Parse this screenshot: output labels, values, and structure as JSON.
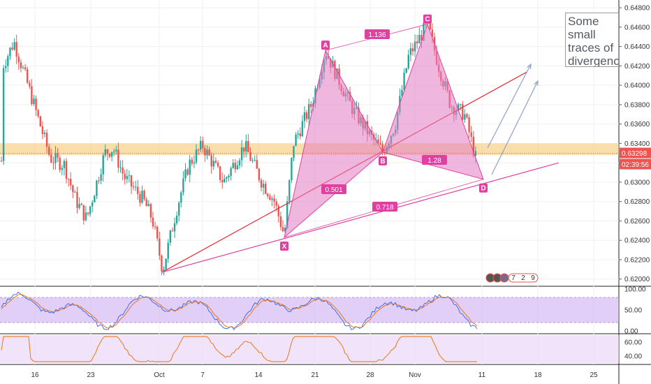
{
  "note": {
    "lines": [
      "Some",
      "small",
      "traces of",
      "divergenc"
    ]
  },
  "price_badges": {
    "current_price": "0.63298",
    "countdown": "02:39:56"
  },
  "chart_data": {
    "type": "candlestick",
    "pair_axis": {
      "ticks": [
        "0.64800",
        "0.64600",
        "0.64400",
        "0.64200",
        "0.64000",
        "0.63800",
        "0.63600",
        "0.63400",
        "0.63200",
        "0.63000",
        "0.62800",
        "0.62600",
        "0.62400",
        "0.62200",
        "0.62000"
      ],
      "ylim": [
        0.6194,
        0.6488
      ]
    },
    "time_axis": {
      "ticks": [
        "16",
        "23",
        "Oct",
        "7",
        "14",
        "21",
        "28",
        "Nov",
        "11",
        "18",
        "25"
      ]
    },
    "support_zone": [
      0.6328,
      0.634
    ],
    "harmonic_pattern": {
      "points": [
        {
          "label": "X",
          "price": 0.6243
        },
        {
          "label": "A",
          "price": 0.6436
        },
        {
          "label": "B",
          "price": 0.6331
        },
        {
          "label": "C",
          "price": 0.6463
        },
        {
          "label": "D",
          "price": 0.6303
        }
      ],
      "ratios": [
        "1.136",
        "0.501",
        "0.718",
        "1.28"
      ]
    },
    "trendlines": [
      {
        "name": "red trendline",
        "color": "#e5343a"
      },
      {
        "name": "pink trendline",
        "color": "#e040a0"
      }
    ],
    "stochastic": {
      "ticks": [
        "100.00",
        "50.00",
        "0.00"
      ]
    },
    "rsi": {
      "ticks": [
        "60.00",
        "40.00"
      ]
    },
    "bottom_badge": [
      "7",
      "2",
      "9"
    ],
    "colors": {
      "up": "#26a69a",
      "down": "#ef5350",
      "pattern": "#e040a0",
      "pattern_fill": "#e37cc2",
      "zone": "#f5c469",
      "current_price": "#ef5350",
      "stoch_k": "#2962ff",
      "stoch_d": "#ef6c00",
      "rsi": "#ef6c00",
      "projection": "#8ea0c8"
    }
  }
}
